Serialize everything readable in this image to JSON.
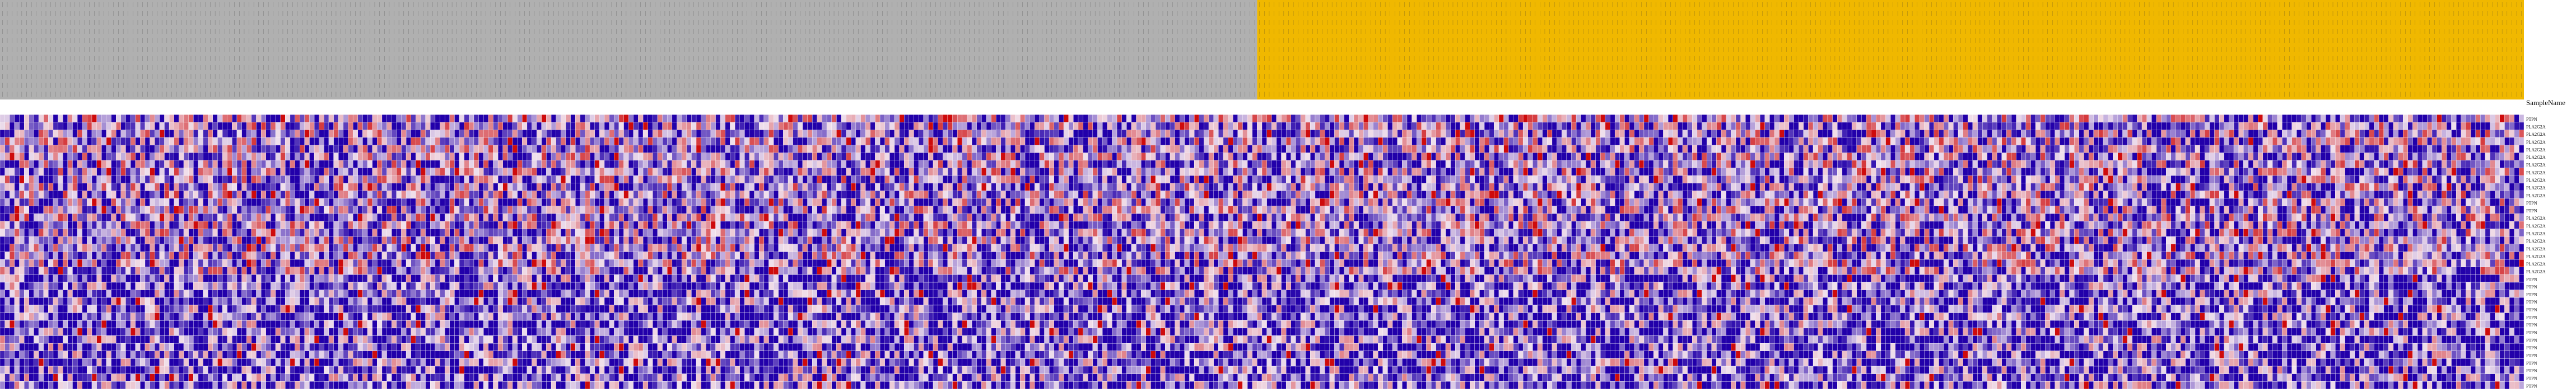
{
  "chart_data": {
    "type": "heatmap",
    "row_header_label": "SampleName",
    "column_groups": [
      {
        "name": "",
        "color": "#b0b0b0",
        "columns": 260
      },
      {
        "name": "",
        "color": "#f0b800",
        "columns": 262
      }
    ],
    "row_count": 36,
    "row_labels": [
      "PTPN",
      "PLA2G2A",
      "PLA2G2A",
      "PLA2G2A",
      "PLA2G2A",
      "PLA2G2A",
      "PLA2G2A",
      "PLA2G2A",
      "PLA2G2A",
      "PLA2G2A",
      "PLA2G2A",
      "PTPN",
      "PTPN",
      "PLA2G2A",
      "PLA2G2A",
      "PLA2G2A",
      "PLA2G2A",
      "PLA2G2A",
      "PLA2G2A",
      "PLA2G2A",
      "PLA2G2A",
      "PTPN",
      "PTPN",
      "PTPN",
      "PTPN",
      "PTPN",
      "PTPN",
      "PTPN",
      "PTPN",
      "PTPN",
      "PTPN",
      "PTPN",
      "PTPN",
      "PTPN",
      "PTPN",
      "PTPN"
    ],
    "color_scale": {
      "low": "#2200aa",
      "mid": "#f0e0ec",
      "high": "#cc0000"
    },
    "value_range": [
      -1,
      1
    ],
    "legend": "none",
    "grid": true
  }
}
